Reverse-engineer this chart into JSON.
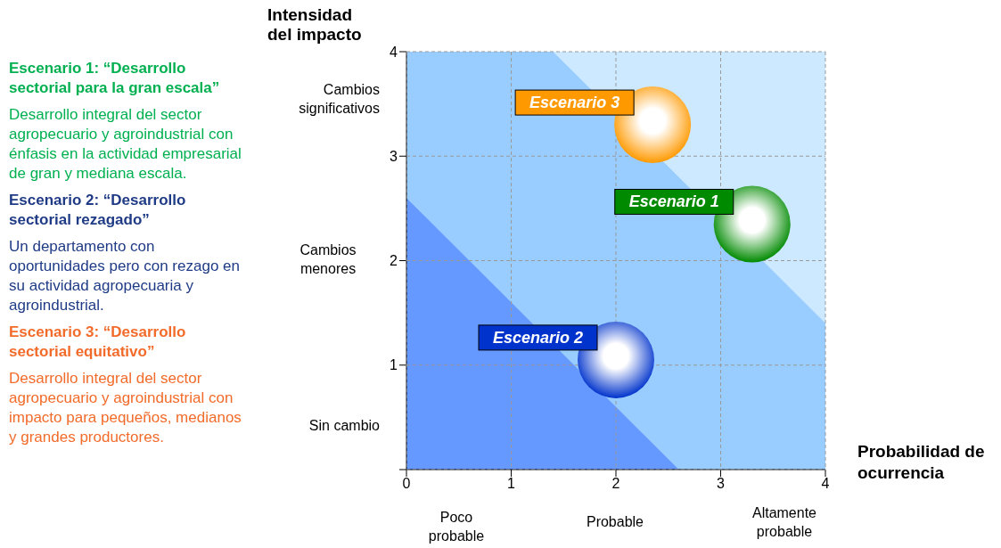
{
  "chart_data": {
    "type": "bubble",
    "xlabel": "Probabilidad de ocurrencia",
    "ylabel": "Intensidad del impacto",
    "xlim": [
      0,
      4
    ],
    "ylim": [
      0,
      4
    ],
    "xticks": [
      0,
      1,
      2,
      3,
      4
    ],
    "yticks": [
      {
        "value": 0,
        "label": null
      },
      1,
      2,
      3,
      4
    ],
    "grid": true,
    "series": [
      {
        "type": "area",
        "color": "#99ccff",
        "x": [
          0,
          1.4,
          4
        ],
        "values": [
          4,
          4,
          1.4
        ]
      },
      {
        "type": "area",
        "color": "#6699ff",
        "x": [
          0,
          2.6
        ],
        "values": [
          2.6,
          0
        ]
      },
      {
        "name": "Escenario 3",
        "color": "#ff9900",
        "x": [
          2.35
        ],
        "values": [
          3.3
        ],
        "sizes": [
          1
        ]
      },
      {
        "name": "Escenario 1",
        "color": "#008a00",
        "x": [
          3.3
        ],
        "values": [
          2.35
        ],
        "sizes": [
          1
        ]
      },
      {
        "name": "Escenario 2",
        "color": "#0033cc",
        "x": [
          2
        ],
        "values": [
          1.05
        ],
        "sizes": [
          1
        ]
      }
    ],
    "annotations": [
      "Escenario 1: “Desarrollo sectorial para la gran escala”",
      "Desarrollo integral del sector agropecuario y agroindustrial con énfasis en la actividad empresarial de gran y mediana escala.",
      "Escenario 2: “Desarrollo sectorial rezagado”",
      "Un departamento con oportunidades pero con rezago en su actividad agropecuaria y agroindustrial.",
      "Escenario 3: “Desarrollo sectorial equitativo”",
      "Desarrollo integral del sector agropecuario y agroindustrial con impacto para pequeños, medianos y grandes productores.",
      "Cambios significativos",
      "Cambios menores",
      "Sin cambio",
      "Poco probable",
      "Probable",
      "Altamente probable"
    ]
  }
}
